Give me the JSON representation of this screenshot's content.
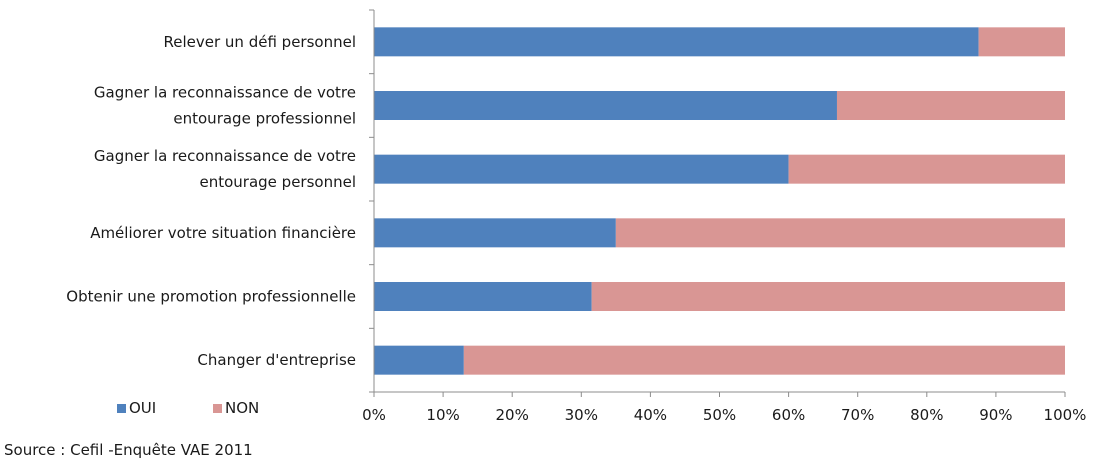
{
  "chart_data": {
    "type": "bar",
    "orientation": "horizontal",
    "stacked": true,
    "categories": [
      "Relever un défi personnel",
      "Gagner la reconnaissance de votre entourage professionnel",
      "Gagner la reconnaissance de votre entourage personnel",
      "Améliorer votre situation financière",
      "Obtenir une promotion professionnelle",
      "Changer d'entreprise"
    ],
    "category_lines": [
      [
        "Relever un défi personnel"
      ],
      [
        "Gagner la reconnaissance de votre",
        "entourage professionnel"
      ],
      [
        "Gagner la reconnaissance de votre",
        "entourage personnel"
      ],
      [
        "Améliorer votre situation financière"
      ],
      [
        "Obtenir une promotion professionnelle"
      ],
      [
        "Changer d'entreprise"
      ]
    ],
    "series": [
      {
        "name": "OUI",
        "color": "#4f81bd",
        "values": [
          87.5,
          67,
          60,
          35,
          31.5,
          13
        ]
      },
      {
        "name": "NON",
        "color": "#d99694",
        "values": [
          12.5,
          33,
          40,
          65,
          68.5,
          87
        ]
      }
    ],
    "xlim": [
      0,
      100
    ],
    "x_ticks": [
      "0%",
      "10%",
      "20%",
      "30%",
      "40%",
      "50%",
      "60%",
      "70%",
      "80%",
      "90%",
      "100%"
    ],
    "grid": false,
    "legend_position": "bottom-left"
  },
  "source": "Source : Cefil -Enquête VAE 2011"
}
